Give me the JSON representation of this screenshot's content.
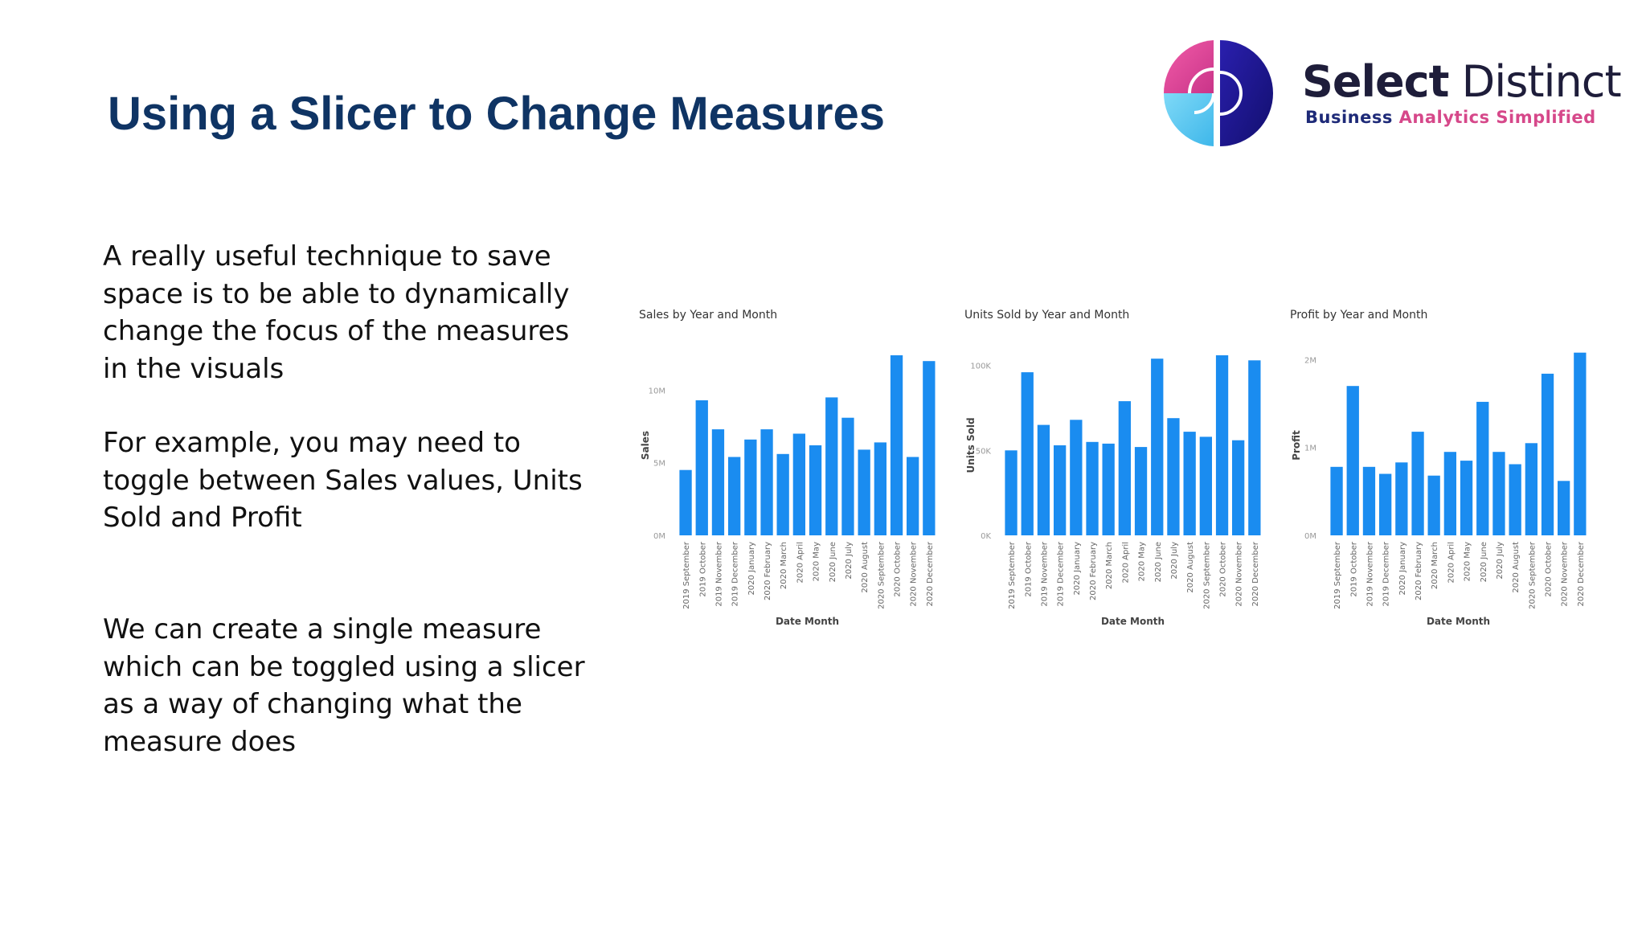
{
  "slide": {
    "title": "Using a Slicer to Change Measures"
  },
  "logo": {
    "name_bold": "Select",
    "name_regular": "Distinct",
    "tagline_part1": "Business",
    "tagline_part2": "Analytics Simplified",
    "colors": {
      "pink": "#e0408e",
      "lightblue": "#57c8f0",
      "navy": "#1d1a8c",
      "indigo": "#3b2bb8"
    }
  },
  "body": {
    "paragraph_1": "A really useful technique to save space is to be able to dynamically change the focus of the measures in the visuals",
    "paragraph_2": "For example, you may need to toggle between Sales values, Units Sold and Profit",
    "paragraph_3": "We can create a single measure which can be toggled using a slicer as a way of changing what the measure does"
  },
  "chart_data": [
    {
      "type": "bar",
      "title": "Sales by Year and Month",
      "xlabel": "Date Month",
      "ylabel": "Sales",
      "ylim": [
        0,
        12400000
      ],
      "yticks": [
        0,
        5000000,
        10000000
      ],
      "ytick_labels": [
        "0M",
        "5M",
        "10M"
      ],
      "color": "#1a8cf0",
      "categories": [
        "2019 September",
        "2019 October",
        "2019 November",
        "2019 December",
        "2020 January",
        "2020 February",
        "2020 March",
        "2020 April",
        "2020 May",
        "2020 June",
        "2020 July",
        "2020 August",
        "2020 September",
        "2020 October",
        "2020 November",
        "2020 December"
      ],
      "values": [
        4500000,
        9300000,
        7300000,
        5400000,
        6600000,
        7300000,
        5600000,
        7000000,
        6200000,
        9500000,
        8100000,
        5900000,
        6400000,
        12400000,
        5400000,
        12000000
      ]
    },
    {
      "type": "bar",
      "title": "Units Sold by Year and Month",
      "xlabel": "Date Month",
      "ylabel": "Units Sold",
      "ylim": [
        0,
        106000
      ],
      "yticks": [
        0,
        50000,
        100000
      ],
      "ytick_labels": [
        "0K",
        "50K",
        "100K"
      ],
      "color": "#1a8cf0",
      "categories": [
        "2019 September",
        "2019 October",
        "2019 November",
        "2019 December",
        "2020 January",
        "2020 February",
        "2020 March",
        "2020 April",
        "2020 May",
        "2020 June",
        "2020 July",
        "2020 August",
        "2020 September",
        "2020 October",
        "2020 November",
        "2020 December"
      ],
      "values": [
        50000,
        96000,
        65000,
        53000,
        68000,
        55000,
        54000,
        79000,
        52000,
        104000,
        69000,
        61000,
        58000,
        106000,
        56000,
        103000
      ]
    },
    {
      "type": "bar",
      "title": "Profit by Year and Month",
      "xlabel": "Date Month",
      "ylabel": "Profit",
      "ylim": [
        0,
        2050000
      ],
      "yticks": [
        0,
        1000000,
        2000000
      ],
      "ytick_labels": [
        "0M",
        "1M",
        "2M"
      ],
      "color": "#1a8cf0",
      "categories": [
        "2019 September",
        "2019 October",
        "2019 November",
        "2019 December",
        "2020 January",
        "2020 February",
        "2020 March",
        "2020 April",
        "2020 May",
        "2020 June",
        "2020 July",
        "2020 August",
        "2020 September",
        "2020 October",
        "2020 November",
        "2020 December"
      ],
      "values": [
        780000,
        1700000,
        780000,
        700000,
        830000,
        1180000,
        680000,
        950000,
        850000,
        1520000,
        950000,
        810000,
        1050000,
        1840000,
        620000,
        2080000
      ]
    }
  ]
}
